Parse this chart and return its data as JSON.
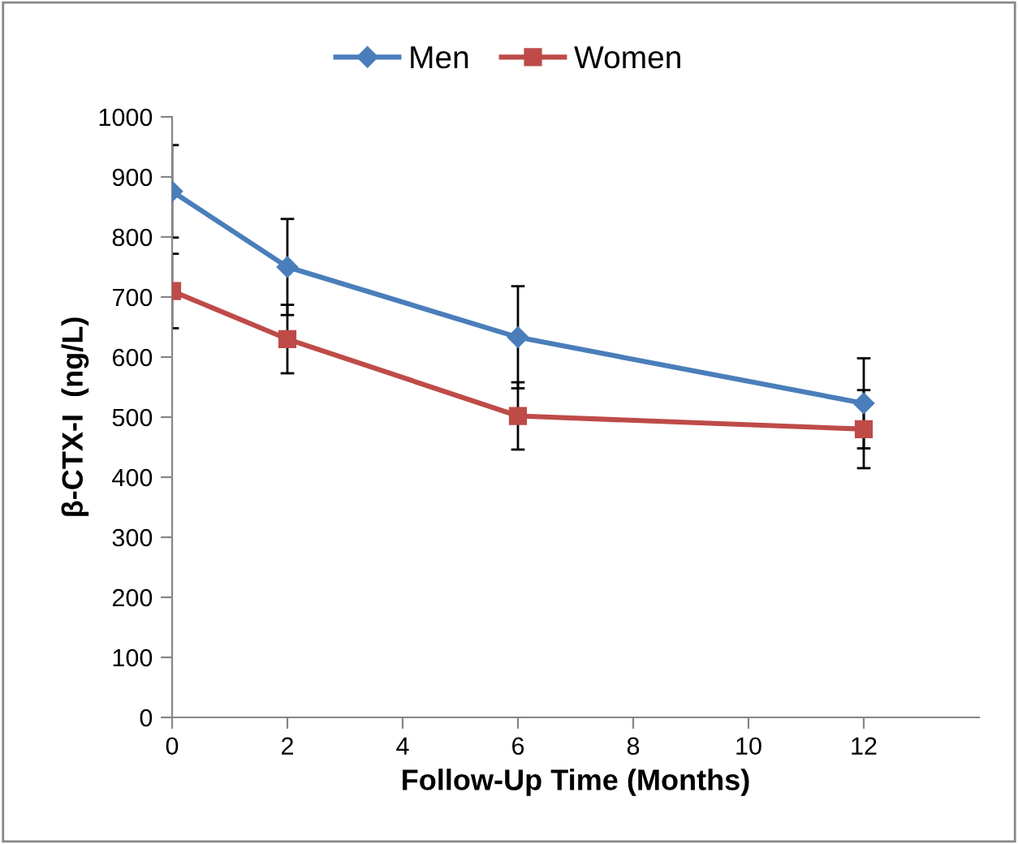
{
  "chart_data": {
    "type": "line",
    "xlabel": "Follow-Up Time (Months)",
    "ylabel": "β-CTX-I  (ng/L)",
    "x": [
      0,
      2,
      6,
      12
    ],
    "series": [
      {
        "name": "Men",
        "color": "#4a7ebb",
        "marker": "diamond",
        "values": [
          876,
          750,
          633,
          523
        ],
        "errors": [
          77,
          80,
          85,
          75
        ]
      },
      {
        "name": "Women",
        "color": "#be4b48",
        "marker": "square",
        "values": [
          710,
          630,
          502,
          480
        ],
        "errors": [
          62,
          57,
          56,
          65
        ]
      }
    ],
    "xlim": [
      0,
      14
    ],
    "xticks": [
      0,
      2,
      4,
      6,
      8,
      10,
      12
    ],
    "ylim": [
      0,
      1000
    ],
    "yticks": [
      0,
      100,
      200,
      300,
      400,
      500,
      600,
      700,
      800,
      900,
      1000
    ],
    "grid": false,
    "legend": "top",
    "line_style": "solid"
  }
}
